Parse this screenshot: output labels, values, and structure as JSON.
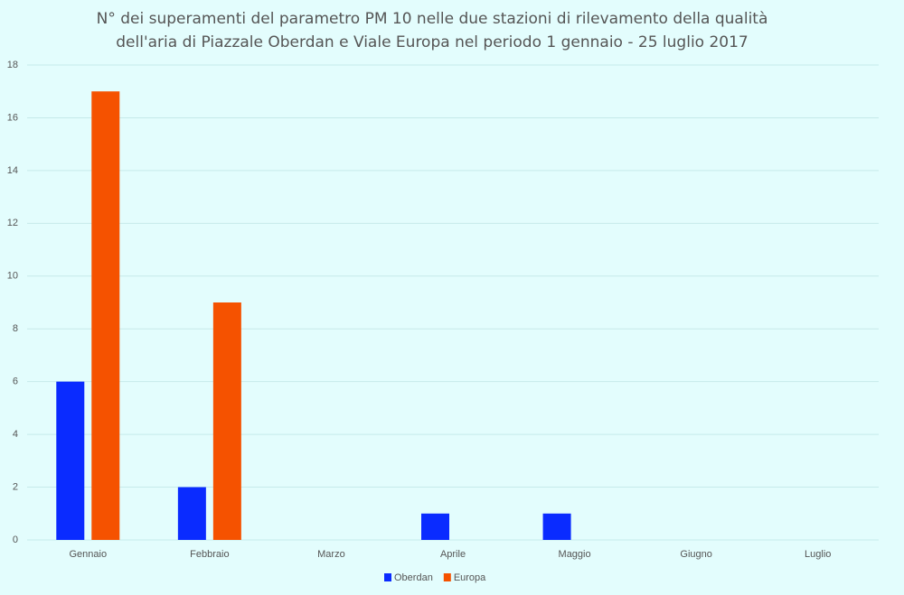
{
  "chart_data": {
    "type": "bar",
    "title": "N° dei superamenti del parametro PM 10 nelle due stazioni di rilevamento della qualità dell'aria di Piazzale Oberdan e Viale Europa nel periodo 1 gennaio - 25 luglio 2017",
    "categories": [
      "Gennaio",
      "Febbraio",
      "Marzo",
      "Aprile",
      "Maggio",
      "Giugno",
      "Luglio"
    ],
    "series": [
      {
        "name": "Oberdan",
        "color": "#0a2bff",
        "values": [
          6,
          2,
          0,
          1,
          1,
          0,
          0
        ]
      },
      {
        "name": "Europa",
        "color": "#f55200",
        "values": [
          17,
          9,
          0,
          0,
          0,
          0,
          0
        ]
      }
    ],
    "ylim": [
      0,
      18
    ],
    "yticks": [
      0,
      2,
      4,
      6,
      8,
      10,
      12,
      14,
      16,
      18
    ],
    "grid": true,
    "legend": "bottom"
  }
}
